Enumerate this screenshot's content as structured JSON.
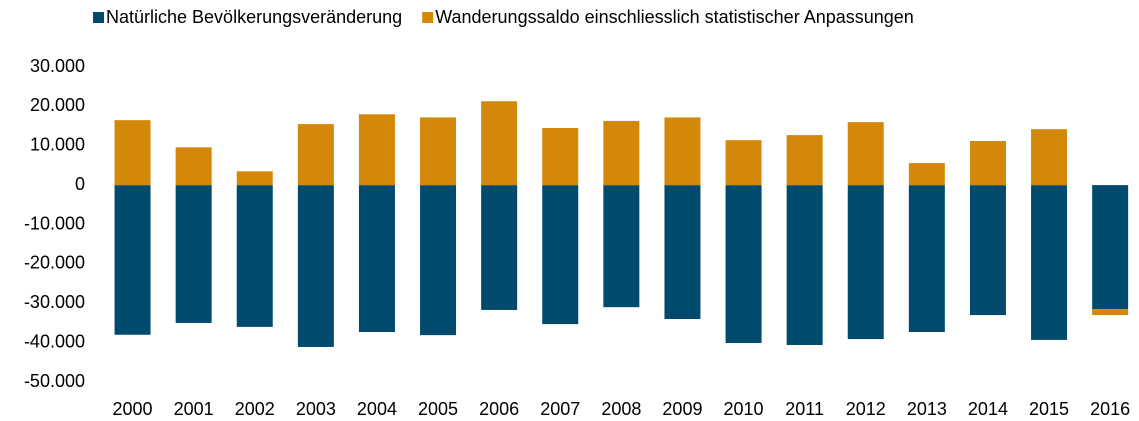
{
  "chart_data": {
    "type": "bar",
    "stacked": true,
    "categories": [
      "2000",
      "2001",
      "2002",
      "2003",
      "2004",
      "2005",
      "2006",
      "2007",
      "2008",
      "2009",
      "2010",
      "2011",
      "2012",
      "2013",
      "2014",
      "2015",
      "2016"
    ],
    "series": [
      {
        "name": "Natürliche Bevölkerungsveränderung",
        "color": "#004a6e",
        "values": [
          -38000,
          -35000,
          -36000,
          -41100,
          -37300,
          -38100,
          -31700,
          -35300,
          -31000,
          -34000,
          -40100,
          -40600,
          -39100,
          -37300,
          -33000,
          -39300,
          -31500
        ]
      },
      {
        "name": "Wanderungssaldo einschliesslich statistischer Anpassungen",
        "color": "#d4880a",
        "values": [
          16500,
          9600,
          3500,
          15500,
          18000,
          17200,
          21300,
          14500,
          16300,
          17200,
          11400,
          12700,
          16000,
          5600,
          11200,
          14200,
          -1500
        ]
      }
    ],
    "ylim": [
      -50000,
      30000
    ],
    "yticks": [
      {
        "value": 30000,
        "label": "30.000"
      },
      {
        "value": 20000,
        "label": "20.000"
      },
      {
        "value": 10000,
        "label": "10.000"
      },
      0,
      {
        "value": -10000,
        "label": "-10.000"
      },
      {
        "value": -20000,
        "label": "-20.000"
      },
      {
        "value": -30000,
        "label": "-30.000"
      },
      {
        "value": -40000,
        "label": "-40.000"
      },
      {
        "value": -50000,
        "label": "-50.000"
      }
    ],
    "grid": false,
    "legend": "top"
  }
}
